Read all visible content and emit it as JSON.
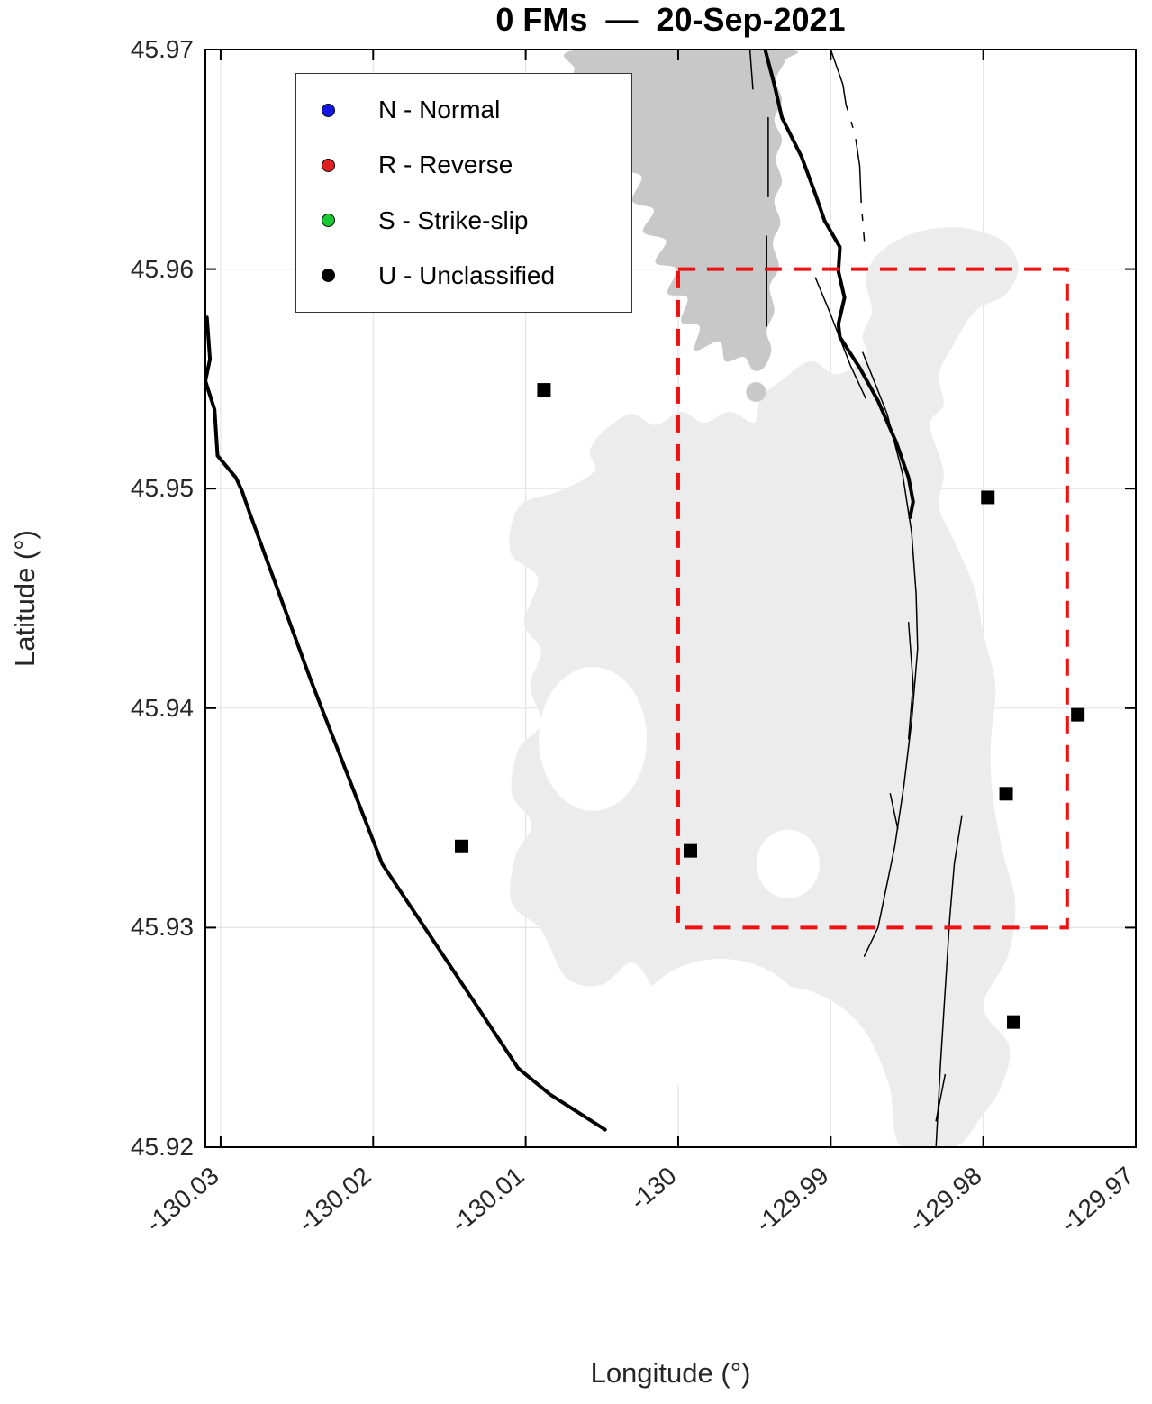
{
  "title": "0 FMs  —  20-Sep-2021",
  "colors": {
    "background": "#ffffff",
    "axis": "#000000",
    "grid": "#e4e4e4",
    "tick_text": "#262626",
    "island_fill": "#c8c8c8",
    "bathymetry_fill": "#ececec",
    "fault_line": "#000000",
    "station_marker": "#000000",
    "study_box": "#ee1111",
    "legend_normal": "#1414e6",
    "legend_reverse": "#e02020",
    "legend_strike_slip": "#18c832",
    "legend_unclassified": "#000000"
  },
  "legend": {
    "items": [
      {
        "key": "normal",
        "color": "#1414e6",
        "label": "N - Normal"
      },
      {
        "key": "reverse",
        "color": "#e02020",
        "label": "R - Reverse"
      },
      {
        "key": "strike-slip",
        "color": "#18c832",
        "label": "S - Strike-slip"
      },
      {
        "key": "unclassified",
        "color": "#000000",
        "label": "U - Unclassified"
      }
    ]
  },
  "chart_data": {
    "type": "map",
    "title": "0 FMs  —  20-Sep-2021",
    "focal_mechanism_count": 0,
    "date": "20-Sep-2021",
    "xlabel": "Longitude (°)",
    "ylabel": "Latitude (°)",
    "xlim": [
      -130.031,
      -129.97
    ],
    "ylim": [
      45.92,
      45.97
    ],
    "grid": true,
    "xticks": [
      -130.03,
      -130.02,
      -130.01,
      -130,
      -129.99,
      -129.98,
      -129.97
    ],
    "xtick_labels": [
      "-130.03",
      "-130.02",
      "-130.01",
      "-130",
      "-129.99",
      "-129.98",
      "-129.97"
    ],
    "yticks": [
      45.97,
      45.96,
      45.95,
      45.94,
      45.93,
      45.92
    ],
    "ytick_labels": [
      "45.97",
      "45.96",
      "45.95",
      "45.94",
      "45.93",
      "45.92"
    ],
    "study_area_box": {
      "lon_min": -130.0,
      "lon_max": -129.9745,
      "lat_min": 45.93,
      "lat_max": 45.96
    },
    "stations": [
      [
        -130.0088,
        45.9545
      ],
      [
        -129.9797,
        45.9496
      ],
      [
        -129.9738,
        45.9397
      ],
      [
        -129.9785,
        45.9361
      ],
      [
        -130.0142,
        45.9337
      ],
      [
        -129.9992,
        45.9335
      ],
      [
        -129.978,
        45.9257
      ]
    ],
    "regions": {
      "island": [
        [
          -130.0064,
          45.97
        ],
        [
          -130.0068,
          45.9691
        ],
        [
          -130.007,
          45.9682
        ],
        [
          -130.0063,
          45.9674
        ],
        [
          -130.0053,
          45.9672
        ],
        [
          -130.0047,
          45.968
        ],
        [
          -130.004,
          45.9673
        ],
        [
          -130.0043,
          45.9663
        ],
        [
          -130.0031,
          45.9658
        ],
        [
          -130.0036,
          45.9646
        ],
        [
          -130.0024,
          45.9642
        ],
        [
          -130.003,
          45.9631
        ],
        [
          -130.0016,
          45.9627
        ],
        [
          -130.0023,
          45.9617
        ],
        [
          -130.0008,
          45.9613
        ],
        [
          -130.0015,
          45.9603
        ],
        [
          -130.0001,
          45.96
        ],
        [
          -130.0007,
          45.9589
        ],
        [
          -129.9994,
          45.9587
        ],
        [
          -129.9998,
          45.9576
        ],
        [
          -129.9986,
          45.9574
        ],
        [
          -129.9989,
          45.9563
        ],
        [
          -129.9973,
          45.9567
        ],
        [
          -129.9969,
          45.9558
        ],
        [
          -129.9957,
          45.956
        ],
        [
          -129.9951,
          45.9554
        ],
        [
          -129.9944,
          45.9555
        ],
        [
          -129.9939,
          45.9563
        ],
        [
          -129.9942,
          45.9572
        ],
        [
          -129.9937,
          45.9581
        ],
        [
          -129.994,
          45.9592
        ],
        [
          -129.9934,
          45.9601
        ],
        [
          -129.9938,
          45.9612
        ],
        [
          -129.9933,
          45.9621
        ],
        [
          -129.9937,
          45.9631
        ],
        [
          -129.9932,
          45.964
        ],
        [
          -129.9936,
          45.965
        ],
        [
          -129.9932,
          45.9659
        ],
        [
          -129.9937,
          45.9668
        ],
        [
          -129.9932,
          45.9677
        ],
        [
          -129.9936,
          45.9686
        ],
        [
          -129.993,
          45.9695
        ],
        [
          -129.9932,
          45.97
        ]
      ],
      "islet": {
        "lon": -129.9949,
        "lat": 45.9544,
        "rlon": 0.00065,
        "rlat": 0.00045
      },
      "bathymetry": [
        [
          -129.9877,
          45.956
        ],
        [
          -129.9896,
          45.9552
        ],
        [
          -129.9913,
          45.9558
        ],
        [
          -129.9931,
          45.955
        ],
        [
          -129.9946,
          45.9541
        ],
        [
          -129.995,
          45.953
        ],
        [
          -129.9966,
          45.9535
        ],
        [
          -129.9983,
          45.953
        ],
        [
          -129.9998,
          45.9535
        ],
        [
          -130.0015,
          45.9529
        ],
        [
          -130.0031,
          45.9534
        ],
        [
          -130.0049,
          45.9526
        ],
        [
          -130.0058,
          45.9517
        ],
        [
          -130.0055,
          45.9508
        ],
        [
          -130.0077,
          45.9499
        ],
        [
          -130.0104,
          45.9492
        ],
        [
          -130.011,
          45.9471
        ],
        [
          -130.0092,
          45.9459
        ],
        [
          -130.0101,
          45.9439
        ],
        [
          -130.009,
          45.9426
        ],
        [
          -130.0097,
          45.941
        ],
        [
          -130.009,
          45.9393
        ],
        [
          -130.0105,
          45.9381
        ],
        [
          -130.0109,
          45.9361
        ],
        [
          -130.0096,
          45.9347
        ],
        [
          -130.0107,
          45.9332
        ],
        [
          -130.0109,
          45.9311
        ],
        [
          -130.009,
          45.9299
        ],
        [
          -130.0073,
          45.9277
        ],
        [
          -130.005,
          45.9274
        ],
        [
          -130.0031,
          45.9284
        ],
        [
          -130.0017,
          45.9273
        ],
        [
          -129.9997,
          45.9243
        ],
        [
          -129.9977,
          45.926
        ],
        [
          -129.9949,
          45.9272
        ],
        [
          -129.9913,
          45.9271
        ],
        [
          -129.9881,
          45.9256
        ],
        [
          -129.9862,
          45.9229
        ],
        [
          -129.9854,
          45.92
        ],
        [
          -129.9819,
          45.92
        ],
        [
          -129.9801,
          45.9214
        ],
        [
          -129.9788,
          45.9228
        ],
        [
          -129.9783,
          45.9246
        ],
        [
          -129.98,
          45.9264
        ],
        [
          -129.9784,
          45.9287
        ],
        [
          -129.9779,
          45.9311
        ],
        [
          -129.9787,
          45.9334
        ],
        [
          -129.9794,
          45.9361
        ],
        [
          -129.9795,
          45.9385
        ],
        [
          -129.9792,
          45.941
        ],
        [
          -129.98,
          45.9434
        ],
        [
          -129.9806,
          45.9455
        ],
        [
          -129.9819,
          45.9476
        ],
        [
          -129.9829,
          45.9492
        ],
        [
          -129.9826,
          45.9508
        ],
        [
          -129.9835,
          45.9529
        ],
        [
          -129.9826,
          45.9538
        ],
        [
          -129.9829,
          45.9552
        ],
        [
          -129.982,
          45.9565
        ],
        [
          -129.9805,
          45.9581
        ],
        [
          -129.9786,
          45.9588
        ],
        [
          -129.9777,
          45.96
        ],
        [
          -129.9784,
          45.9611
        ],
        [
          -129.9801,
          45.9617
        ],
        [
          -129.9825,
          45.9619
        ],
        [
          -129.9851,
          45.9615
        ],
        [
          -129.987,
          45.9606
        ],
        [
          -129.9877,
          45.9595
        ],
        [
          -129.9873,
          45.9581
        ],
        [
          -129.9879,
          45.957
        ]
      ],
      "bathymetry_holes": [
        {
          "lon": -130.0056,
          "lat": 45.9386,
          "rlon": 0.00354,
          "rlat": 0.00328
        },
        {
          "lon": -129.9972,
          "lat": 45.9255,
          "rlon": 0.00561,
          "rlat": 0.00308
        },
        {
          "lon": -129.9928,
          "lat": 45.9329,
          "rlon": 0.00207,
          "rlat": 0.00156
        }
      ]
    },
    "fault_lines": [
      {
        "name": "west-ridge-line",
        "weight": "thick",
        "dash": "solid",
        "points": [
          [
            -130.0309,
            45.9578
          ],
          [
            -130.0307,
            45.9559
          ],
          [
            -130.031,
            45.9549
          ],
          [
            -130.0304,
            45.9536
          ],
          [
            -130.0302,
            45.9515
          ],
          [
            -130.029,
            45.9505
          ],
          [
            -130.0286,
            45.9499
          ],
          [
            -130.0281,
            45.9489
          ],
          [
            -130.0241,
            45.9413
          ],
          [
            -130.0194,
            45.9329
          ],
          [
            -130.0146,
            45.9279
          ],
          [
            -130.0105,
            45.9236
          ],
          [
            -130.0084,
            45.9224
          ],
          [
            -130.0048,
            45.9208
          ]
        ]
      },
      {
        "name": "east-ridge-line",
        "weight": "thick",
        "dash": "solid",
        "points": [
          [
            -129.9943,
            45.97
          ],
          [
            -129.9937,
            45.9684
          ],
          [
            -129.9932,
            45.9669
          ],
          [
            -129.9919,
            45.9651
          ],
          [
            -129.991,
            45.9634
          ],
          [
            -129.9904,
            45.9622
          ],
          [
            -129.9894,
            45.961
          ],
          [
            -129.9895,
            45.9599
          ],
          [
            -129.9891,
            45.9587
          ],
          [
            -129.9895,
            45.9575
          ],
          [
            -129.9894,
            45.9569
          ],
          [
            -129.9881,
            45.9555
          ],
          [
            -129.9869,
            45.954
          ],
          [
            -129.9857,
            45.9521
          ],
          [
            -129.9849,
            45.9505
          ],
          [
            -129.9846,
            45.9494
          ],
          [
            -129.9848,
            45.9487
          ]
        ]
      },
      {
        "name": "long-arc-fault",
        "weight": "thin",
        "dash": "solid",
        "points": [
          [
            -129.9879,
            45.9562
          ],
          [
            -129.9863,
            45.9534
          ],
          [
            -129.9853,
            45.9507
          ],
          [
            -129.9847,
            45.948
          ],
          [
            -129.9844,
            45.9452
          ],
          [
            -129.9843,
            45.9427
          ],
          [
            -129.9847,
            45.9394
          ],
          [
            -129.9852,
            45.9365
          ],
          [
            -129.9858,
            45.9337
          ],
          [
            -129.9869,
            45.93
          ],
          [
            -129.9878,
            45.9287
          ]
        ]
      },
      {
        "name": "northeast-dashdot-fault",
        "weight": "thin",
        "dash": "dashdot",
        "points": [
          [
            -129.99,
            45.97
          ],
          [
            -129.9892,
            45.9684
          ],
          [
            -129.989,
            45.9675
          ],
          [
            -129.9884,
            45.9661
          ],
          [
            -129.9881,
            45.9647
          ],
          [
            -129.988,
            45.963
          ],
          [
            -129.9878,
            45.9613
          ]
        ]
      },
      {
        "name": "island-fault-seg-1",
        "weight": "thin",
        "dash": "solid",
        "points": [
          [
            -129.9953,
            45.97
          ],
          [
            -129.9951,
            45.9682
          ]
        ]
      },
      {
        "name": "island-fault-seg-2",
        "weight": "thin",
        "dash": "solid",
        "points": [
          [
            -129.9941,
            45.9669
          ],
          [
            -129.9941,
            45.9633
          ]
        ]
      },
      {
        "name": "island-fault-seg-3",
        "weight": "thin",
        "dash": "solid",
        "points": [
          [
            -129.9942,
            45.9615
          ],
          [
            -129.9942,
            45.9574
          ]
        ]
      },
      {
        "name": "companion-seg-1",
        "weight": "thin",
        "dash": "solid",
        "points": [
          [
            -129.991,
            45.9596
          ],
          [
            -129.9901,
            45.9581
          ],
          [
            -129.9887,
            45.9556
          ],
          [
            -129.9877,
            45.9541
          ]
        ]
      },
      {
        "name": "companion-seg-2",
        "weight": "thin",
        "dash": "solid",
        "points": [
          [
            -129.9849,
            45.9439
          ],
          [
            -129.9846,
            45.9411
          ],
          [
            -129.9849,
            45.9386
          ]
        ]
      },
      {
        "name": "companion-seg-3",
        "weight": "thin",
        "dash": "solid",
        "points": [
          [
            -129.9861,
            45.9361
          ],
          [
            -129.9856,
            45.9345
          ]
        ]
      },
      {
        "name": "companion-seg-4",
        "weight": "thin",
        "dash": "solid",
        "points": [
          [
            -129.9825,
            45.9233
          ],
          [
            -129.9831,
            45.9212
          ]
        ]
      },
      {
        "name": "south-fault",
        "weight": "thin",
        "dash": "solid",
        "points": [
          [
            -129.9814,
            45.9351
          ],
          [
            -129.9819,
            45.9329
          ],
          [
            -129.9822,
            45.9304
          ],
          [
            -129.9825,
            45.9271
          ],
          [
            -129.9828,
            45.9238
          ],
          [
            -129.9831,
            45.92
          ]
        ]
      }
    ]
  }
}
